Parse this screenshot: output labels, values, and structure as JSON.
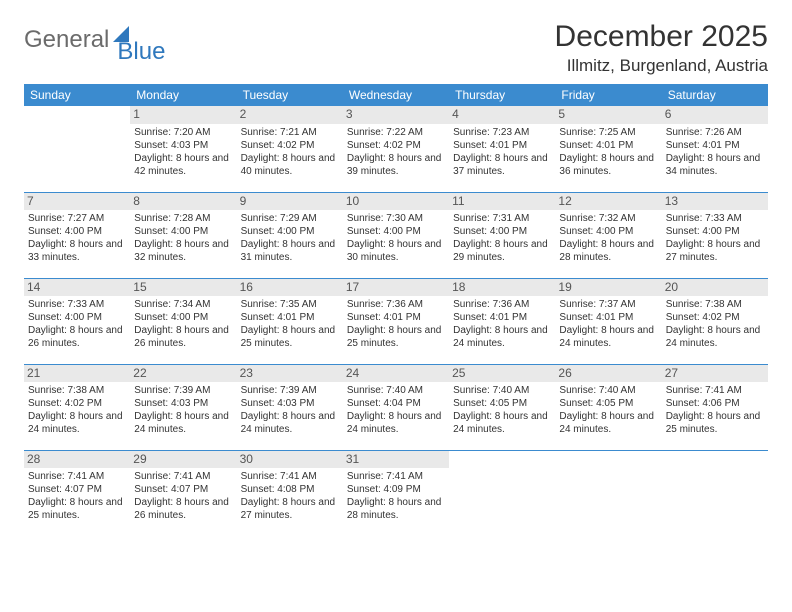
{
  "logo": {
    "part1": "General",
    "part2": "Blue"
  },
  "header": {
    "month_title": "December 2025",
    "location": "Illmitz, Burgenland, Austria"
  },
  "colors": {
    "header_bg": "#3b8bcf",
    "header_text": "#ffffff",
    "daynum_bg": "#e9e9e9",
    "accent": "#2f78bd",
    "text": "#333333"
  },
  "weekdays": [
    "Sunday",
    "Monday",
    "Tuesday",
    "Wednesday",
    "Thursday",
    "Friday",
    "Saturday"
  ],
  "weeks": [
    [
      null,
      {
        "n": "1",
        "sr": "7:20 AM",
        "ss": "4:03 PM",
        "dl": "8 hours and 42 minutes."
      },
      {
        "n": "2",
        "sr": "7:21 AM",
        "ss": "4:02 PM",
        "dl": "8 hours and 40 minutes."
      },
      {
        "n": "3",
        "sr": "7:22 AM",
        "ss": "4:02 PM",
        "dl": "8 hours and 39 minutes."
      },
      {
        "n": "4",
        "sr": "7:23 AM",
        "ss": "4:01 PM",
        "dl": "8 hours and 37 minutes."
      },
      {
        "n": "5",
        "sr": "7:25 AM",
        "ss": "4:01 PM",
        "dl": "8 hours and 36 minutes."
      },
      {
        "n": "6",
        "sr": "7:26 AM",
        "ss": "4:01 PM",
        "dl": "8 hours and 34 minutes."
      }
    ],
    [
      {
        "n": "7",
        "sr": "7:27 AM",
        "ss": "4:00 PM",
        "dl": "8 hours and 33 minutes."
      },
      {
        "n": "8",
        "sr": "7:28 AM",
        "ss": "4:00 PM",
        "dl": "8 hours and 32 minutes."
      },
      {
        "n": "9",
        "sr": "7:29 AM",
        "ss": "4:00 PM",
        "dl": "8 hours and 31 minutes."
      },
      {
        "n": "10",
        "sr": "7:30 AM",
        "ss": "4:00 PM",
        "dl": "8 hours and 30 minutes."
      },
      {
        "n": "11",
        "sr": "7:31 AM",
        "ss": "4:00 PM",
        "dl": "8 hours and 29 minutes."
      },
      {
        "n": "12",
        "sr": "7:32 AM",
        "ss": "4:00 PM",
        "dl": "8 hours and 28 minutes."
      },
      {
        "n": "13",
        "sr": "7:33 AM",
        "ss": "4:00 PM",
        "dl": "8 hours and 27 minutes."
      }
    ],
    [
      {
        "n": "14",
        "sr": "7:33 AM",
        "ss": "4:00 PM",
        "dl": "8 hours and 26 minutes."
      },
      {
        "n": "15",
        "sr": "7:34 AM",
        "ss": "4:00 PM",
        "dl": "8 hours and 26 minutes."
      },
      {
        "n": "16",
        "sr": "7:35 AM",
        "ss": "4:01 PM",
        "dl": "8 hours and 25 minutes."
      },
      {
        "n": "17",
        "sr": "7:36 AM",
        "ss": "4:01 PM",
        "dl": "8 hours and 25 minutes."
      },
      {
        "n": "18",
        "sr": "7:36 AM",
        "ss": "4:01 PM",
        "dl": "8 hours and 24 minutes."
      },
      {
        "n": "19",
        "sr": "7:37 AM",
        "ss": "4:01 PM",
        "dl": "8 hours and 24 minutes."
      },
      {
        "n": "20",
        "sr": "7:38 AM",
        "ss": "4:02 PM",
        "dl": "8 hours and 24 minutes."
      }
    ],
    [
      {
        "n": "21",
        "sr": "7:38 AM",
        "ss": "4:02 PM",
        "dl": "8 hours and 24 minutes."
      },
      {
        "n": "22",
        "sr": "7:39 AM",
        "ss": "4:03 PM",
        "dl": "8 hours and 24 minutes."
      },
      {
        "n": "23",
        "sr": "7:39 AM",
        "ss": "4:03 PM",
        "dl": "8 hours and 24 minutes."
      },
      {
        "n": "24",
        "sr": "7:40 AM",
        "ss": "4:04 PM",
        "dl": "8 hours and 24 minutes."
      },
      {
        "n": "25",
        "sr": "7:40 AM",
        "ss": "4:05 PM",
        "dl": "8 hours and 24 minutes."
      },
      {
        "n": "26",
        "sr": "7:40 AM",
        "ss": "4:05 PM",
        "dl": "8 hours and 24 minutes."
      },
      {
        "n": "27",
        "sr": "7:41 AM",
        "ss": "4:06 PM",
        "dl": "8 hours and 25 minutes."
      }
    ],
    [
      {
        "n": "28",
        "sr": "7:41 AM",
        "ss": "4:07 PM",
        "dl": "8 hours and 25 minutes."
      },
      {
        "n": "29",
        "sr": "7:41 AM",
        "ss": "4:07 PM",
        "dl": "8 hours and 26 minutes."
      },
      {
        "n": "30",
        "sr": "7:41 AM",
        "ss": "4:08 PM",
        "dl": "8 hours and 27 minutes."
      },
      {
        "n": "31",
        "sr": "7:41 AM",
        "ss": "4:09 PM",
        "dl": "8 hours and 28 minutes."
      },
      null,
      null,
      null
    ]
  ],
  "labels": {
    "sunrise": "Sunrise:",
    "sunset": "Sunset:",
    "daylight": "Daylight:"
  }
}
